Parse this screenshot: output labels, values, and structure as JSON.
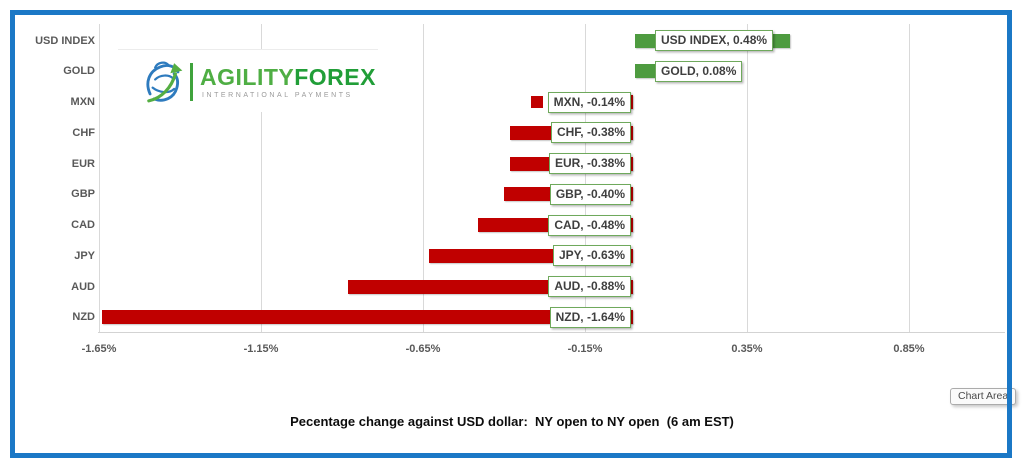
{
  "logo": {
    "brand_primary": "AGILITY",
    "brand_secondary": "FOREX",
    "tagline": "INTERNATIONAL PAYMENTS"
  },
  "tooltip": "Chart Area",
  "chart_data": {
    "type": "bar",
    "orientation": "horizontal",
    "title": "Pecentage change against USD dollar:  NY open to NY open  (6 am EST)",
    "categories": [
      "USD INDEX",
      "GOLD",
      "MXN",
      "CHF",
      "EUR",
      "GBP",
      "CAD",
      "JPY",
      "AUD",
      "NZD"
    ],
    "values": [
      0.48,
      0.08,
      -0.14,
      -0.38,
      -0.38,
      -0.4,
      -0.48,
      -0.63,
      -0.88,
      -1.64
    ],
    "labels": [
      "USD INDEX, 0.48%",
      "GOLD, 0.08%",
      "MXN, -0.14%",
      "CHF, -0.38%",
      "EUR, -0.38%",
      "GBP, -0.40%",
      "CAD, -0.48%",
      "JPY, -0.63%",
      "AUD, -0.88%",
      "NZD, -1.64%"
    ],
    "x_ticks": [
      "-1.65%",
      "-1.15%",
      "-0.65%",
      "-0.15%",
      "0.35%",
      "0.85%"
    ],
    "x_tick_values": [
      -1.65,
      -1.15,
      -0.65,
      -0.15,
      0.35,
      0.85
    ],
    "xlim": [
      -1.65,
      1.16
    ],
    "grid": true,
    "legend": "none",
    "legend_key_rows": [
      "MXN"
    ],
    "colors": {
      "positive": "#4E9B40",
      "negative": "#C00000",
      "label_border": "#6FA95C",
      "gridline": "#D9D9D9",
      "axis_text": "#595959",
      "frame": "#1B78C6"
    }
  }
}
